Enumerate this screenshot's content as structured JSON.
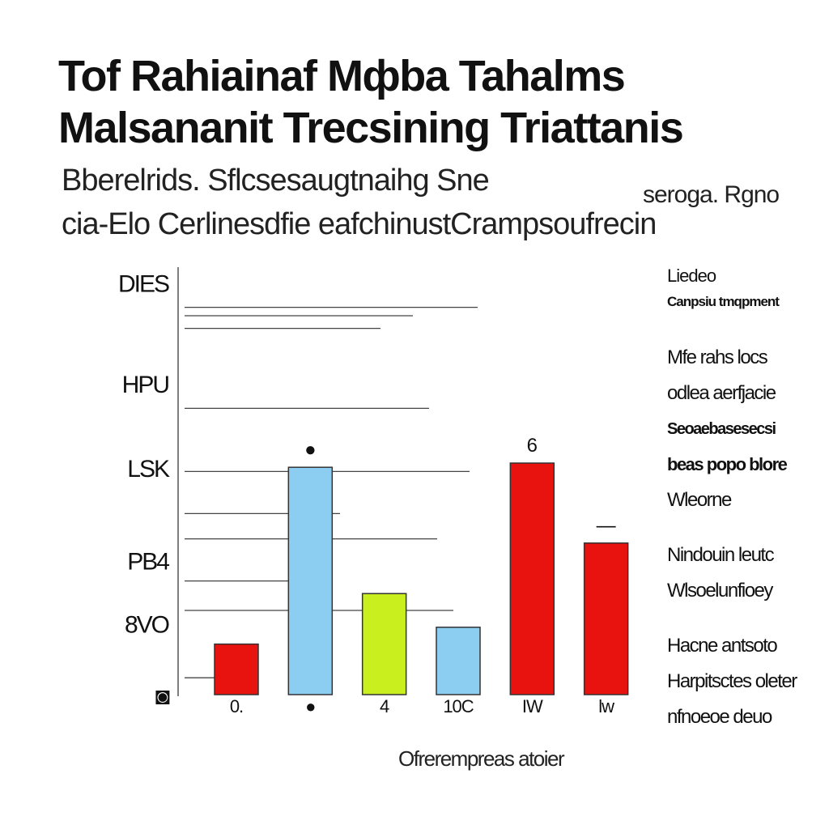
{
  "title_lines": [
    "Tof Rahiainaf Mфba Tahalms",
    "Malsananit Trecsining Triattanis"
  ],
  "subtitle_lines": [
    "Bberelrids. Sflcsesaugtnaihg Sne",
    "cia-Elo Cerlinesdfie eafchinustCrampsoufrecin"
  ],
  "subtitle_note": "seroga. Rgno",
  "legend": {
    "heading": "Liedeo",
    "subheading": "Canpsiu tmqpment",
    "items": [
      "Mfe rahs locs",
      "odlea aerfjacie",
      "Seoaebasesecsi",
      "beas popo blore",
      "Wleorne"
    ],
    "items_group2": [
      "Nindouin leutc",
      "Wlsoelunfioey"
    ],
    "items_group3": [
      "Hacne antsoto",
      "Harpitsctes oleter",
      "nfnoeoe deuo"
    ]
  },
  "chart_data": {
    "type": "bar",
    "title": "Tof Rahiainaf Mфba Tahalms Malsananit Trecsining Triattanis",
    "xlabel": "Ofrerempreas atoier",
    "ylabel": "",
    "categories": [
      "0.",
      "●",
      "4",
      "10C",
      "IW",
      "lw"
    ],
    "values": [
      1.2,
      5.4,
      2.4,
      1.6,
      5.5,
      3.6
    ],
    "bar_colors": [
      "#e8120e",
      "#8ccdf2",
      "#c9f01e",
      "#8ccdf2",
      "#e8120e",
      "#e8120e"
    ],
    "data_labels": [
      "",
      "●",
      "",
      "",
      "6",
      "—"
    ],
    "yticks": [
      {
        "value": 0,
        "label": "◙"
      },
      {
        "value": 1.7,
        "label": "8VO"
      },
      {
        "value": 3.2,
        "label": "PB4"
      },
      {
        "value": 5.4,
        "label": "LSK"
      },
      {
        "value": 7.4,
        "label": "HPU"
      },
      {
        "value": 9.8,
        "label": "DIES"
      }
    ],
    "gridlines": [
      0.4,
      2.0,
      2.7,
      3.7,
      4.3,
      5.3,
      6.8,
      8.7,
      9.0,
      9.2
    ],
    "ylim": [
      0,
      10
    ],
    "grid": true,
    "legend_position": "right"
  }
}
